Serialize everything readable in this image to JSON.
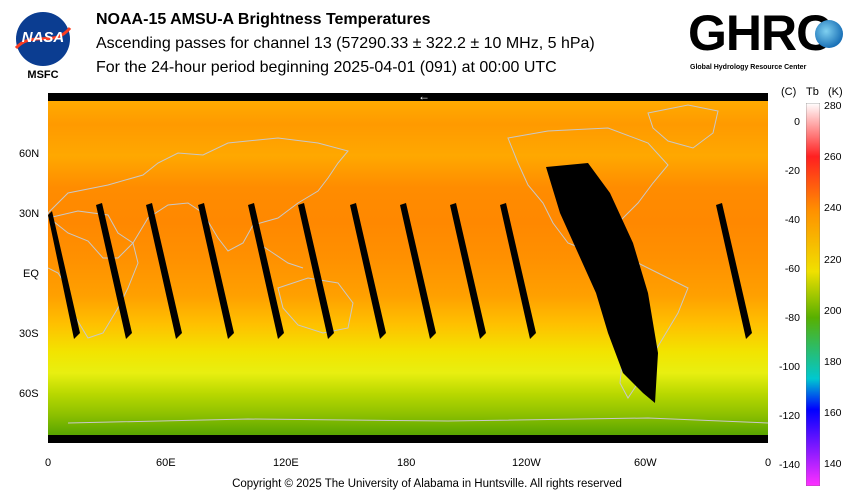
{
  "header": {
    "nasa_logo_text": "NASA",
    "center_label": "MSFC",
    "title": "NOAA-15 AMSU-A Brightness Temperatures",
    "subtitle": "Ascending passes for channel 13 (57290.33 ± 322.2 ± 10 MHz, 5 hPa)",
    "period": "For the 24-hour period beginning 2025-04-01 (091) at 00:00 UTC",
    "ghrc_logo_text": "GHRC",
    "ghrc_full_name": "Global Hydrology Resource Center"
  },
  "map": {
    "lat_labels": [
      "60N",
      "30N",
      "EQ",
      "30S",
      "60S"
    ],
    "lon_labels": [
      "0",
      "60E",
      "120E",
      "180",
      "120W",
      "60W",
      "0"
    ],
    "direction_arrow": "←"
  },
  "colorbar": {
    "header_c": "(C)",
    "header_tb": "Tb",
    "header_k": "(K)",
    "kelvin_ticks": [
      "280",
      "260",
      "240",
      "220",
      "200",
      "180",
      "160",
      "140"
    ],
    "celsius_ticks": [
      "0",
      "-20",
      "-40",
      "-60",
      "-80",
      "-100",
      "-120",
      "-140"
    ],
    "colors": [
      "#ffffff",
      "#ff2020",
      "#ff9000",
      "#f0e000",
      "#58b000",
      "#00c8d0",
      "#0000ff",
      "#ff30ff"
    ]
  },
  "footer": {
    "copyright": "Copyright © 2025 The University of Alabama in Huntsville.  All rights reserved"
  }
}
